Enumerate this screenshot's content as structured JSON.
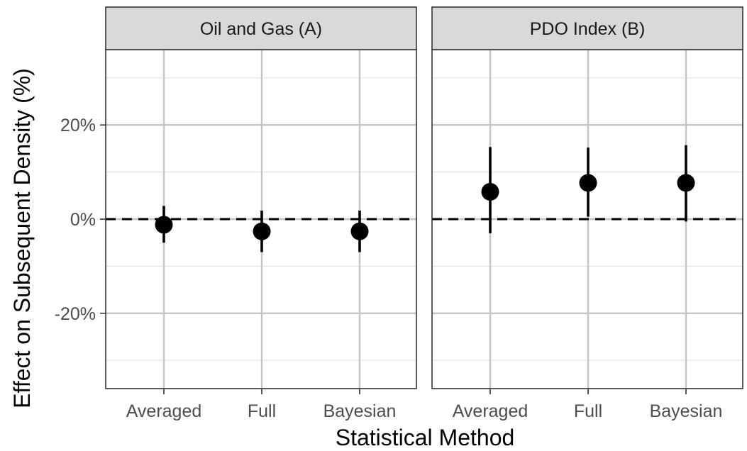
{
  "chart_data": {
    "type": "errorbar",
    "xlabel": "Statistical Method",
    "ylabel": "Effect on Subsequent Density (%)",
    "categories": [
      "Averaged",
      "Full",
      "Bayesian"
    ],
    "ylim": [
      -36,
      36
    ],
    "y_major_ticks": [
      -20,
      0,
      20
    ],
    "y_tick_labels": [
      "-20%",
      "0%",
      "20%"
    ],
    "y_minor_ticks": [
      -30,
      -10,
      10,
      30
    ],
    "reference_line": {
      "y": 0,
      "style": "dashed"
    },
    "grid": true,
    "panels": [
      {
        "label": "Oil and Gas (A)",
        "points": [
          {
            "category": "Averaged",
            "estimate": -1.2,
            "lower": -5.0,
            "upper": 2.8
          },
          {
            "category": "Full",
            "estimate": -2.6,
            "lower": -7.0,
            "upper": 1.8
          },
          {
            "category": "Bayesian",
            "estimate": -2.6,
            "lower": -7.0,
            "upper": 1.8
          }
        ]
      },
      {
        "label": "PDO Index (B)",
        "points": [
          {
            "category": "Averaged",
            "estimate": 5.8,
            "lower": -3.0,
            "upper": 15.3
          },
          {
            "category": "Full",
            "estimate": 7.7,
            "lower": 0.5,
            "upper": 15.2
          },
          {
            "category": "Bayesian",
            "estimate": 7.7,
            "lower": -0.5,
            "upper": 15.7
          }
        ]
      }
    ]
  }
}
